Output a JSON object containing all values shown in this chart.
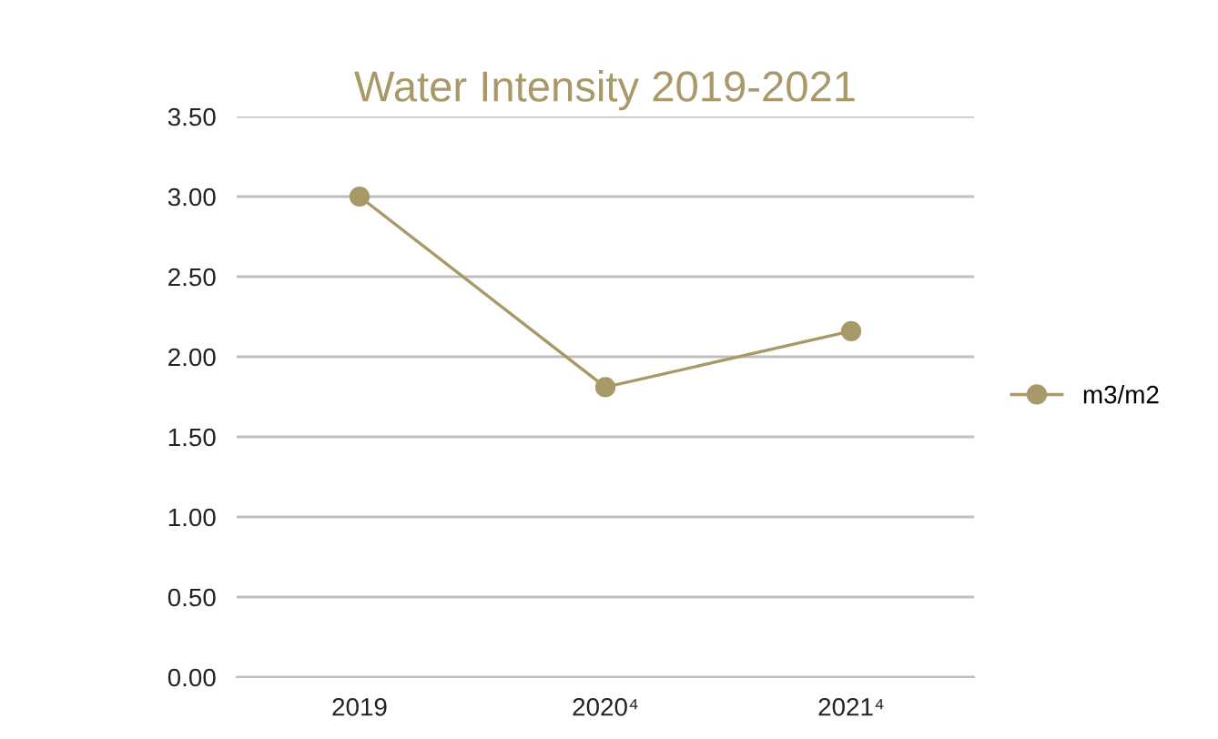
{
  "chart_data": {
    "type": "line",
    "title": "Water Intensity 2019-2021",
    "categories": [
      "2019",
      "2020⁴",
      "2021⁴"
    ],
    "series": [
      {
        "name": "m3/m2",
        "color": "#a89968",
        "values": [
          3.0,
          1.81,
          2.16
        ]
      }
    ],
    "ylim": [
      0,
      3.5
    ],
    "yticks": [
      {
        "value": 0,
        "label": "0.00"
      },
      {
        "value": 0.5,
        "label": "0.50"
      },
      {
        "value": 1,
        "label": "1.00"
      },
      {
        "value": 1.5,
        "label": "1.50"
      },
      {
        "value": 2,
        "label": "2.00"
      },
      {
        "value": 2.5,
        "label": "2.50"
      },
      {
        "value": 3,
        "label": "3.00"
      },
      {
        "value": 3.5,
        "label": "3.50"
      }
    ],
    "grid": "y",
    "legend": "right",
    "marker": "circle",
    "line_style": "solid"
  }
}
